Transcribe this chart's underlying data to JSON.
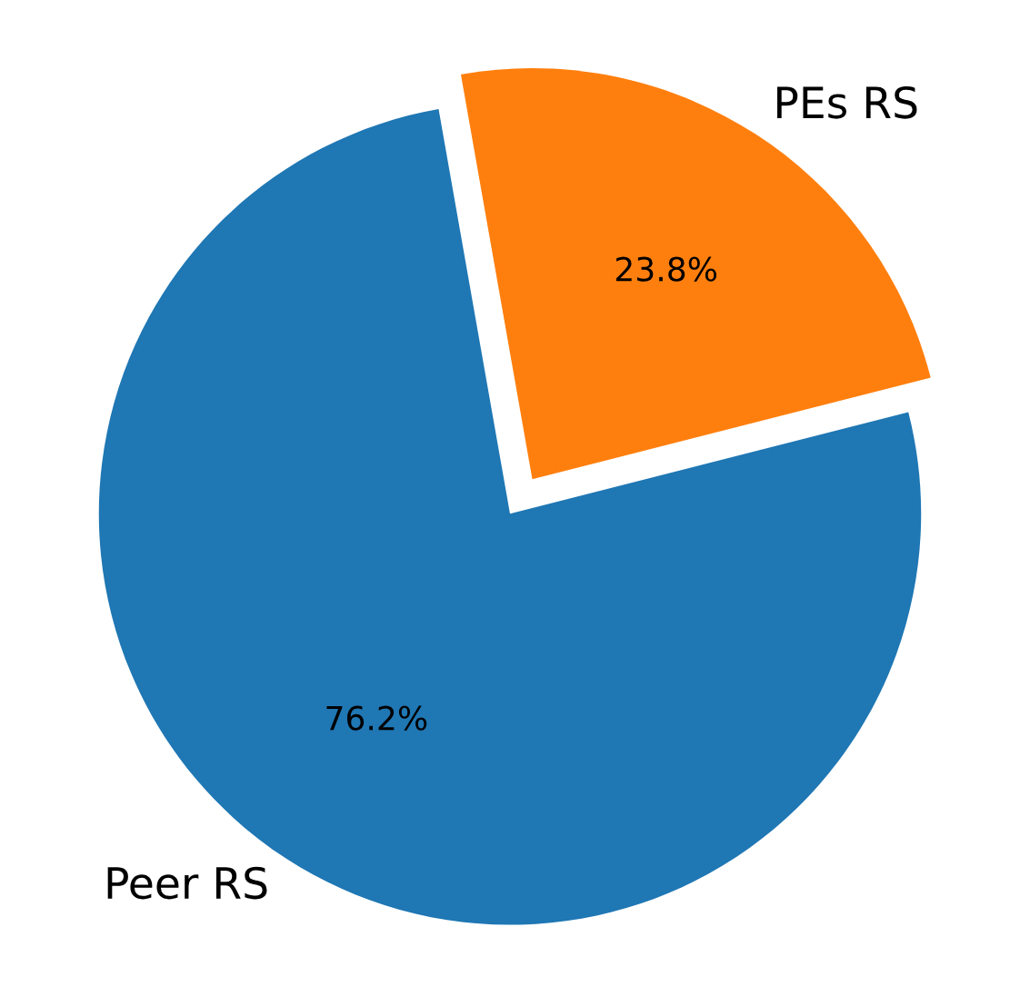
{
  "chart_data": {
    "type": "pie",
    "categories": [
      "Peer RS",
      "PEs RS"
    ],
    "values": [
      76.2,
      23.8
    ],
    "colors": [
      "#1f77b4",
      "#ff7f0e"
    ],
    "value_labels": [
      "76.2%",
      "23.8%"
    ]
  }
}
